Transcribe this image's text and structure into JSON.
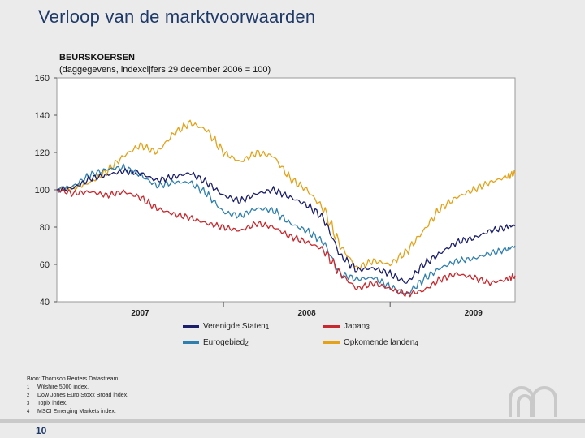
{
  "slide": {
    "title": "Verloop van de marktvoorwaarden",
    "page_number": "10"
  },
  "chart_data": {
    "type": "line",
    "title": "BEURSKOERSEN",
    "subtitle": "(daggegevens, indexcijfers 29 december 2006 = 100)",
    "xlabel": "",
    "ylabel": "",
    "ylim": [
      40,
      160
    ],
    "yticks": [
      40,
      60,
      80,
      100,
      120,
      140,
      160
    ],
    "xlim": [
      2007.0,
      2009.75
    ],
    "xticks": [
      {
        "label": "2007",
        "x": 2007.5
      },
      {
        "label": "2008",
        "x": 2008.5
      },
      {
        "label": "2009",
        "x": 2009.5
      }
    ],
    "x": [
      2007.0,
      2007.1,
      2007.2,
      2007.3,
      2007.4,
      2007.5,
      2007.6,
      2007.7,
      2007.8,
      2007.9,
      2008.0,
      2008.1,
      2008.2,
      2008.3,
      2008.4,
      2008.5,
      2008.6,
      2008.7,
      2008.8,
      2008.9,
      2009.0,
      2009.1,
      2009.2,
      2009.3,
      2009.4,
      2009.5,
      2009.6,
      2009.7,
      2009.75
    ],
    "series": [
      {
        "name": "Verenigde Staten",
        "sup": "1",
        "color": "#1b1f6b",
        "values": [
          100,
          101,
          106,
          108,
          110,
          109,
          105,
          107,
          109,
          104,
          97,
          94,
          98,
          100,
          96,
          92,
          85,
          65,
          57,
          58,
          55,
          50,
          60,
          66,
          72,
          74,
          78,
          80,
          81
        ]
      },
      {
        "name": "Japan",
        "sup": "3",
        "color": "#c8282e",
        "values": [
          100,
          98,
          99,
          97,
          99,
          96,
          90,
          87,
          85,
          82,
          80,
          78,
          82,
          80,
          75,
          72,
          68,
          55,
          47,
          50,
          47,
          44,
          46,
          52,
          55,
          53,
          50,
          52,
          54
        ]
      },
      {
        "name": "Eurogebied",
        "sup": "2",
        "color": "#2f7fae",
        "values": [
          100,
          102,
          108,
          111,
          112,
          108,
          102,
          104,
          104,
          98,
          88,
          86,
          90,
          89,
          82,
          78,
          72,
          55,
          52,
          53,
          48,
          44,
          52,
          58,
          62,
          63,
          66,
          68,
          70
        ]
      },
      {
        "name": "Opkomende landen",
        "sup": "4",
        "color": "#e3a21a",
        "values": [
          100,
          101,
          104,
          110,
          118,
          124,
          120,
          130,
          136,
          132,
          120,
          115,
          120,
          118,
          106,
          100,
          90,
          70,
          58,
          62,
          60,
          67,
          78,
          90,
          96,
          100,
          104,
          107,
          109
        ]
      }
    ]
  },
  "legend": [
    {
      "label": "Verenigde Staten",
      "sup": "1",
      "color": "#1b1f6b"
    },
    {
      "label": "Japan",
      "sup": "3",
      "color": "#c8282e"
    },
    {
      "label": "Eurogebied",
      "sup": "2",
      "color": "#2f7fae"
    },
    {
      "label": "Opkomende landen",
      "sup": "4",
      "color": "#e3a21a"
    }
  ],
  "footnotes": {
    "source": "Bron: Thomson Reuters Datastream.",
    "items": [
      {
        "mark": "1",
        "text": "Wilshire 5000 index."
      },
      {
        "mark": "2",
        "text": "Dow Jones Euro Stoxx Broad index."
      },
      {
        "mark": "3",
        "text": "Topix index."
      },
      {
        "mark": "4",
        "text": "MSCI Emerging Markets index."
      }
    ]
  }
}
